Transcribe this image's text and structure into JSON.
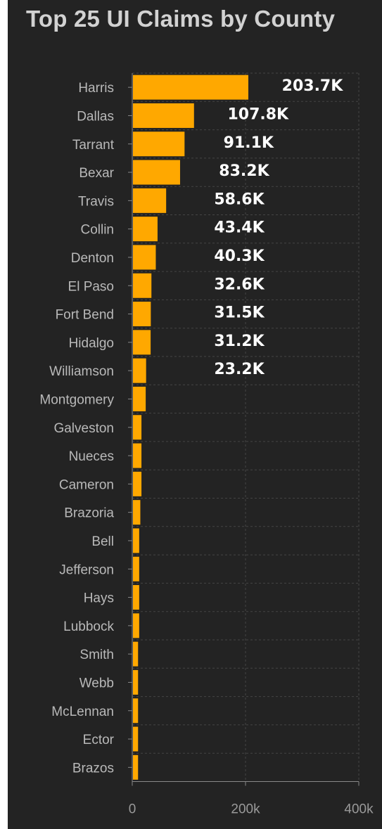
{
  "colors": {
    "background": "#232323",
    "bar": "#ffa800",
    "title": "#d2d2d2",
    "tick": "#b9b9b9",
    "grid": "#444444"
  },
  "chart_data": {
    "type": "bar",
    "orientation": "horizontal",
    "title": "Top 25 UI Claims by County",
    "xlabel": "",
    "ylabel": "",
    "xlim": [
      0,
      400000
    ],
    "x_ticks": [
      "0",
      "200k",
      "400k"
    ],
    "grid": true,
    "categories": [
      "Harris",
      "Dallas",
      "Tarrant",
      "Bexar",
      "Travis",
      "Collin",
      "Denton",
      "El Paso",
      "Fort Bend",
      "Hidalgo",
      "Williamson",
      "Montgomery",
      "Galveston",
      "Nueces",
      "Cameron",
      "Brazoria",
      "Bell",
      "Jefferson",
      "Hays",
      "Lubbock",
      "Smith",
      "Webb",
      "McLennan",
      "Ector",
      "Brazos"
    ],
    "values": [
      203700,
      107800,
      91100,
      83200,
      58600,
      43400,
      40300,
      32600,
      31500,
      31200,
      23200,
      22500,
      15000,
      15000,
      15000,
      13000,
      11000,
      11000,
      11000,
      11000,
      9000,
      9000,
      9000,
      9000,
      9000
    ],
    "data_labels": [
      "203.7K",
      "107.8K",
      "91.1K",
      "83.2K",
      "58.6K",
      "43.4K",
      "40.3K",
      "32.6K",
      "31.5K",
      "31.2K",
      "23.2K",
      "",
      "",
      "",
      "",
      "",
      "",
      "",
      "",
      "",
      "",
      "",
      "",
      "",
      ""
    ]
  }
}
